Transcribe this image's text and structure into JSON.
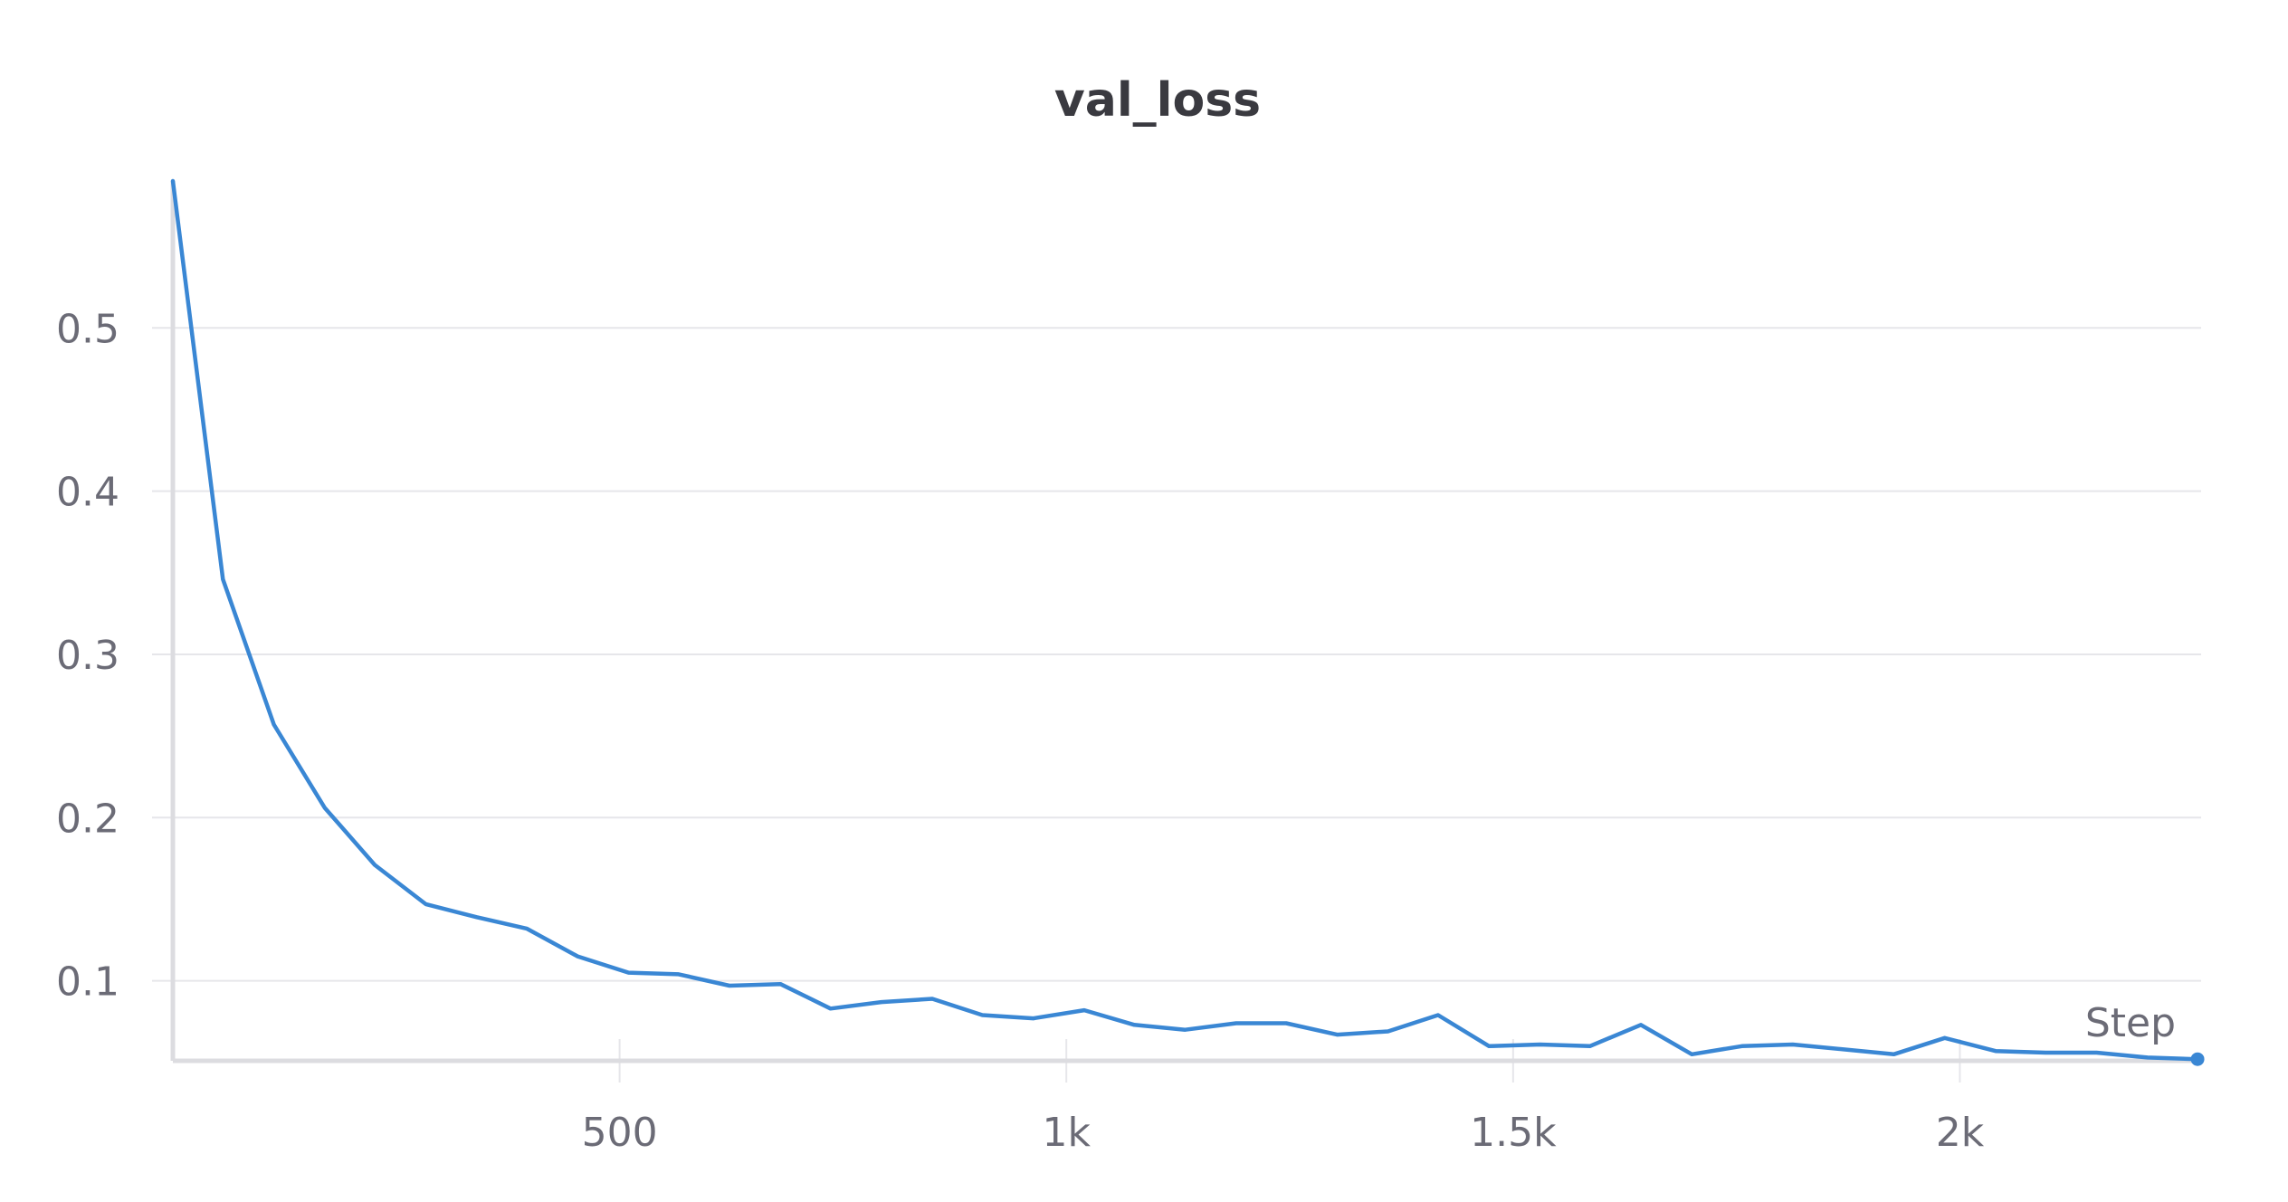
{
  "chart_data": {
    "type": "line",
    "title": "val_loss",
    "xlabel": "Step",
    "ylabel": "",
    "xlim": [
      0,
      2270
    ],
    "ylim": [
      0.051,
      0.59
    ],
    "grid": true,
    "x_ticks": [
      {
        "value": 500,
        "label": "500"
      },
      {
        "value": 1000,
        "label": "1k"
      },
      {
        "value": 1500,
        "label": "1.5k"
      },
      {
        "value": 2000,
        "label": "2k"
      }
    ],
    "y_ticks": [
      {
        "value": 0.1,
        "label": "0.1"
      },
      {
        "value": 0.2,
        "label": "0.2"
      },
      {
        "value": 0.3,
        "label": "0.3"
      },
      {
        "value": 0.4,
        "label": "0.4"
      },
      {
        "value": 0.5,
        "label": "0.5"
      }
    ],
    "colors": {
      "line": "#3a87d4",
      "grid": "#e6e6ea",
      "axis": "#dcdce0",
      "title": "#3a3a40",
      "tick": "#6b6b76"
    },
    "series": [
      {
        "x": [
          0,
          56,
          113,
          170,
          226,
          283,
          340,
          396,
          453,
          510,
          566,
          623,
          680,
          736,
          793,
          850,
          906,
          963,
          1020,
          1076,
          1133,
          1190,
          1246,
          1303,
          1360,
          1416,
          1473,
          1530,
          1586,
          1643,
          1700,
          1756,
          1813,
          1870,
          1926,
          1983,
          2040,
          2096,
          2153,
          2210,
          2266
        ],
        "y": [
          0.59,
          0.346,
          0.257,
          0.206,
          0.171,
          0.147,
          0.139,
          0.132,
          0.115,
          0.105,
          0.104,
          0.097,
          0.098,
          0.083,
          0.087,
          0.089,
          0.079,
          0.077,
          0.082,
          0.073,
          0.07,
          0.074,
          0.074,
          0.067,
          0.069,
          0.079,
          0.06,
          0.061,
          0.06,
          0.073,
          0.055,
          0.06,
          0.061,
          0.058,
          0.055,
          0.065,
          0.057,
          0.056,
          0.056,
          0.053,
          0.052
        ]
      }
    ]
  }
}
